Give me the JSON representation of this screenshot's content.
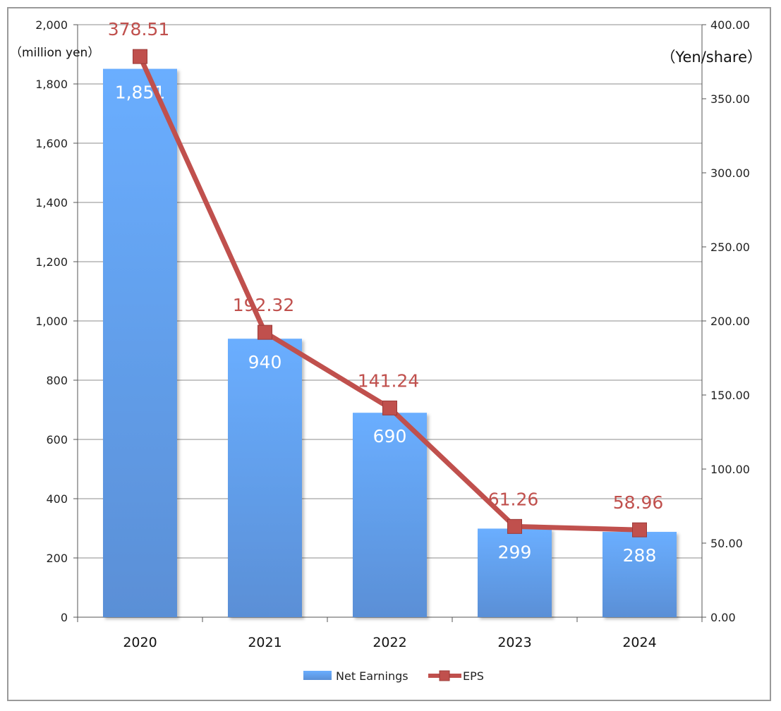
{
  "chart_data": {
    "type": "bar",
    "categories": [
      "2020",
      "2021",
      "2022",
      "2023",
      "2024"
    ],
    "series": [
      {
        "name": "Net Earnings",
        "type": "bar",
        "axis": "left",
        "values": [
          1851,
          940,
          690,
          299,
          288
        ],
        "labels": [
          "1,851",
          "940",
          "690",
          "299",
          "288"
        ],
        "color": "#5b9bd5"
      },
      {
        "name": "EPS",
        "type": "line",
        "axis": "right",
        "values": [
          378.51,
          192.32,
          141.24,
          61.26,
          58.96
        ],
        "labels": [
          "378.51",
          "192.32",
          "141.24",
          "61.26",
          "58.96"
        ],
        "color": "#c0504d"
      }
    ],
    "left_axis": {
      "unit": "（million yen）",
      "ylim": [
        0,
        2000
      ],
      "ticks": [
        "0",
        "200",
        "400",
        "600",
        "800",
        "1,000",
        "1,200",
        "1,400",
        "1,600",
        "1,800",
        "2,000"
      ]
    },
    "right_axis": {
      "unit": "（Yen/share）",
      "ylim": [
        0,
        400
      ],
      "ticks": [
        "0.00",
        "50.00",
        "100.00",
        "150.00",
        "200.00",
        "250.00",
        "300.00",
        "350.00",
        "400.00"
      ]
    },
    "grid": true,
    "legend_position": "bottom"
  }
}
